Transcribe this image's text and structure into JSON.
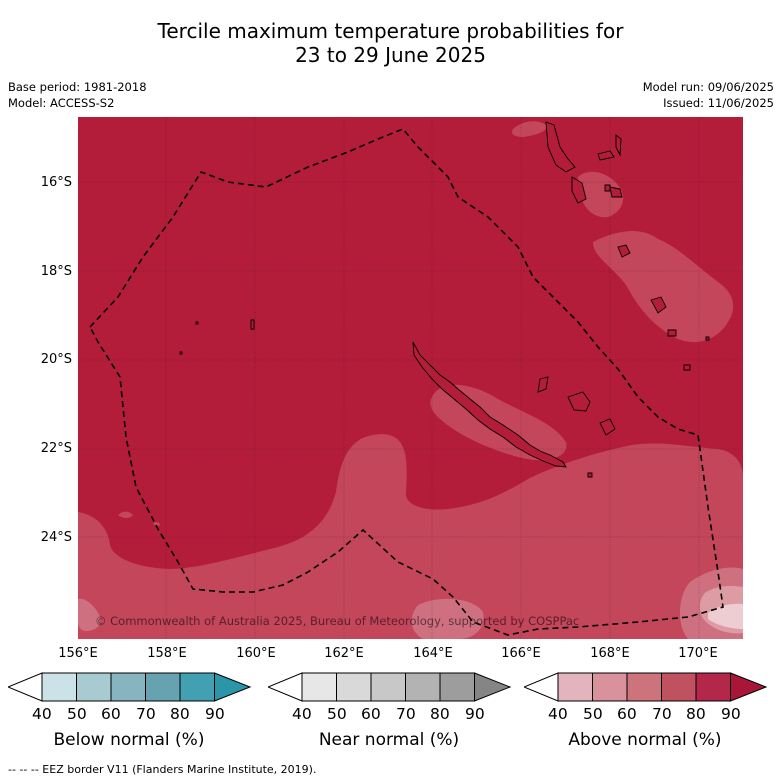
{
  "title": {
    "line1": "Tercile maximum temperature probabilities for",
    "line2": "23 to 29 June 2025"
  },
  "meta_left": {
    "base_period": "Base period: 1981-2018",
    "model": "Model: ACCESS-S2"
  },
  "meta_right": {
    "model_run": "Model run: 09/06/2025",
    "issued": "Issued: 11/06/2025"
  },
  "map": {
    "lat_labels": [
      "16°S",
      "18°S",
      "20°S",
      "22°S",
      "24°S"
    ],
    "lon_labels": [
      "156°E",
      "158°E",
      "160°E",
      "162°E",
      "164°E",
      "166°E",
      "168°E",
      "170°E"
    ],
    "copyright": "© Commonwealth of Australia 2025, Bureau of Meteorology, supported by COSPPac",
    "colors": {
      "above_80": "#b31d3a",
      "above_70": "#c3465a",
      "above_60": "#cf7080",
      "above_50": "#dd9ba4",
      "above_40": "#edcdd2",
      "eez_line": "#000000"
    }
  },
  "legends": [
    {
      "caption": "Below normal (%)",
      "ticks": [
        "40",
        "50",
        "60",
        "70",
        "80",
        "90"
      ],
      "colors": [
        "#ffffff",
        "#cbe3e8",
        "#a8cbd2",
        "#86b5c0",
        "#66a2af",
        "#43a0b2",
        "#2a96a8"
      ]
    },
    {
      "caption": "Near normal (%)",
      "ticks": [
        "40",
        "50",
        "60",
        "70",
        "80",
        "90"
      ],
      "colors": [
        "#ffffff",
        "#e7e7e7",
        "#d9d9d9",
        "#c8c8c8",
        "#b3b3b3",
        "#9d9d9d",
        "#858585"
      ]
    },
    {
      "caption": "Above normal (%)",
      "ticks": [
        "40",
        "50",
        "60",
        "70",
        "80",
        "90"
      ],
      "colors": [
        "#ffffff",
        "#e2b4bd",
        "#d9919b",
        "#cd737c",
        "#c0515f",
        "#b3284a",
        "#a8173a"
      ]
    }
  ],
  "footer": "--  --  -- EEZ border V11 (Flanders Marine Institute, 2019)."
}
